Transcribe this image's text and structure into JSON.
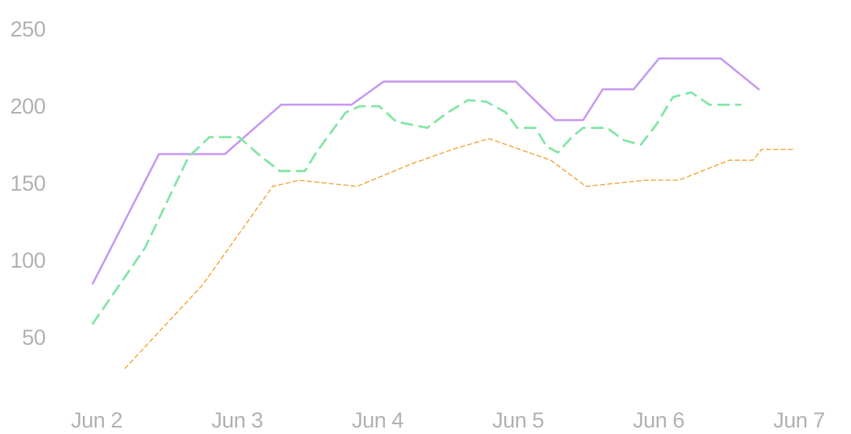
{
  "chart_data": {
    "type": "line",
    "title": "",
    "xlabel": "",
    "ylabel": "",
    "x_ticks": [
      "Jun 2",
      "Jun 3",
      "Jun 4",
      "Jun 5",
      "Jun 6",
      "Jun 7"
    ],
    "y_ticks": [
      50,
      100,
      150,
      200,
      250
    ],
    "xlim": [
      -0.25,
      5.05
    ],
    "ylim": [
      25,
      260
    ],
    "grid": false,
    "legend": "none",
    "series": [
      {
        "color": "#c89cf0",
        "style": "solid",
        "points": [
          [
            -0.05,
            85
          ],
          [
            0.42,
            169
          ],
          [
            0.89,
            169
          ],
          [
            1.29,
            201
          ],
          [
            1.79,
            201
          ],
          [
            2.02,
            216
          ],
          [
            2.48,
            216
          ],
          [
            2.96,
            216
          ],
          [
            3.24,
            191
          ],
          [
            3.44,
            191
          ],
          [
            3.58,
            211
          ],
          [
            3.8,
            211
          ],
          [
            3.98,
            231
          ],
          [
            4.42,
            231
          ],
          [
            4.69,
            211
          ]
        ]
      },
      {
        "color": "#86e6a7",
        "style": "dashed",
        "points": [
          [
            -0.05,
            59
          ],
          [
            0.32,
            108
          ],
          [
            0.63,
            167
          ],
          [
            0.78,
            180
          ],
          [
            0.99,
            180
          ],
          [
            1.14,
            168
          ],
          [
            1.28,
            158
          ],
          [
            1.46,
            158
          ],
          [
            1.54,
            170
          ],
          [
            1.75,
            196
          ],
          [
            1.85,
            200
          ],
          [
            1.99,
            200
          ],
          [
            2.11,
            190
          ],
          [
            2.33,
            186
          ],
          [
            2.46,
            195
          ],
          [
            2.62,
            204
          ],
          [
            2.75,
            203
          ],
          [
            2.89,
            196
          ],
          [
            2.97,
            186
          ],
          [
            3.1,
            186
          ],
          [
            3.18,
            174
          ],
          [
            3.26,
            170
          ],
          [
            3.36,
            180
          ],
          [
            3.44,
            186
          ],
          [
            3.61,
            186
          ],
          [
            3.73,
            178
          ],
          [
            3.85,
            175
          ],
          [
            3.96,
            188
          ],
          [
            4.08,
            206
          ],
          [
            4.21,
            209
          ],
          [
            4.34,
            201
          ],
          [
            4.56,
            201
          ]
        ]
      },
      {
        "color": "#f4a73c",
        "style": "dotted",
        "points": [
          [
            0.18,
            30
          ],
          [
            0.73,
            84
          ],
          [
            1.23,
            148
          ],
          [
            1.42,
            152
          ],
          [
            1.83,
            148
          ],
          [
            2.2,
            162
          ],
          [
            2.51,
            172
          ],
          [
            2.77,
            179
          ],
          [
            3.21,
            165
          ],
          [
            3.46,
            148
          ],
          [
            3.88,
            152
          ],
          [
            4.12,
            152
          ],
          [
            4.48,
            165
          ],
          [
            4.65,
            165
          ],
          [
            4.71,
            172
          ],
          [
            4.95,
            172
          ]
        ]
      }
    ]
  }
}
